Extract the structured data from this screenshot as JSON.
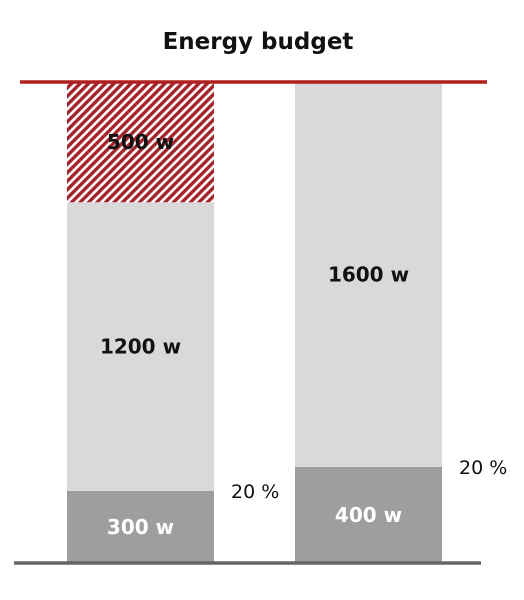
{
  "chart_data": {
    "type": "bar",
    "stacked": true,
    "title": "Energy budget",
    "xlabel": "",
    "ylabel": "",
    "ylim": [
      0,
      2000
    ],
    "grid": false,
    "legend": "none",
    "budget_line": {
      "value": 2000,
      "color": "#b0201e"
    },
    "bars": [
      {
        "segments": [
          {
            "value": 300,
            "label": "300 w",
            "color": "#9e9e9e",
            "label_color": "#ffffff"
          },
          {
            "value": 1200,
            "label": "1200 w",
            "color": "#d9d9d9",
            "label_color": "#111111"
          },
          {
            "value": 500,
            "label": "500 w",
            "color": "#a3252b",
            "pattern": "diagonal-hatch",
            "label_color": "#111111"
          }
        ],
        "side_label": "20 %"
      },
      {
        "segments": [
          {
            "value": 400,
            "label": "400 w",
            "color": "#9e9e9e",
            "label_color": "#ffffff"
          },
          {
            "value": 1600,
            "label": "1600 w",
            "color": "#d9d9d9",
            "label_color": "#111111"
          }
        ],
        "side_label": "20 %"
      }
    ],
    "colors": {
      "axis": "#666666",
      "budget": "#b0201e"
    }
  }
}
